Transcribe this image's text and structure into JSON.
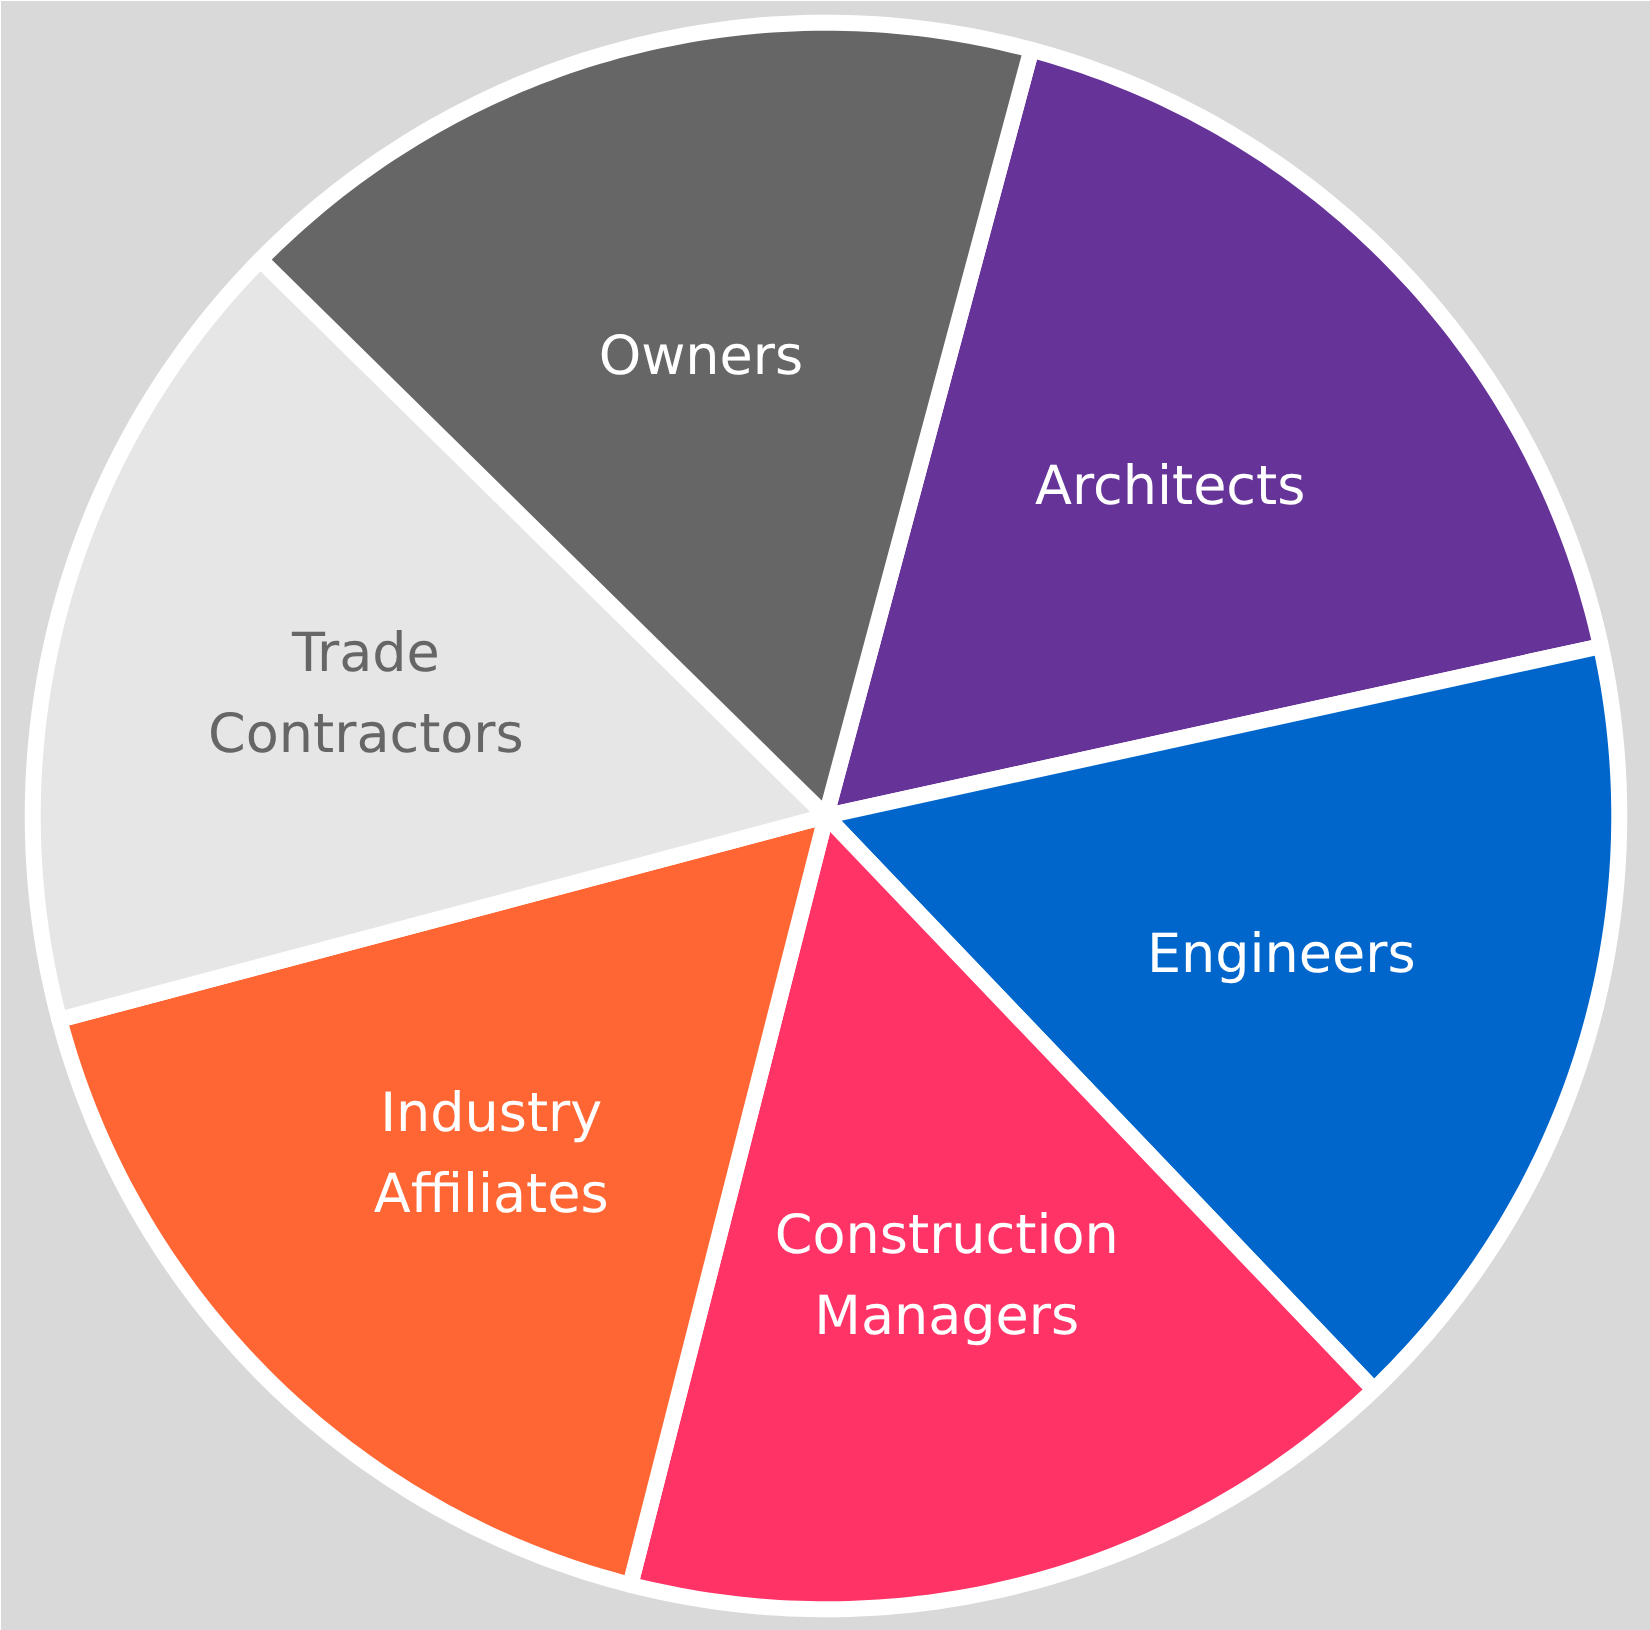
{
  "chart_data": {
    "type": "pie",
    "categories": [
      "Architects",
      "Engineers",
      "Construction\nManagers",
      "Industry\nAffiliates",
      "Trade\nContractors",
      "Owners"
    ],
    "values": [
      17.4,
      16.3,
      16.1,
      16.9,
      16.5,
      16.8
    ],
    "colors": [
      "#663399",
      "#0066cc",
      "#ff3366",
      "#ff6633",
      "#e6e6e6",
      "#666666"
    ]
  }
}
